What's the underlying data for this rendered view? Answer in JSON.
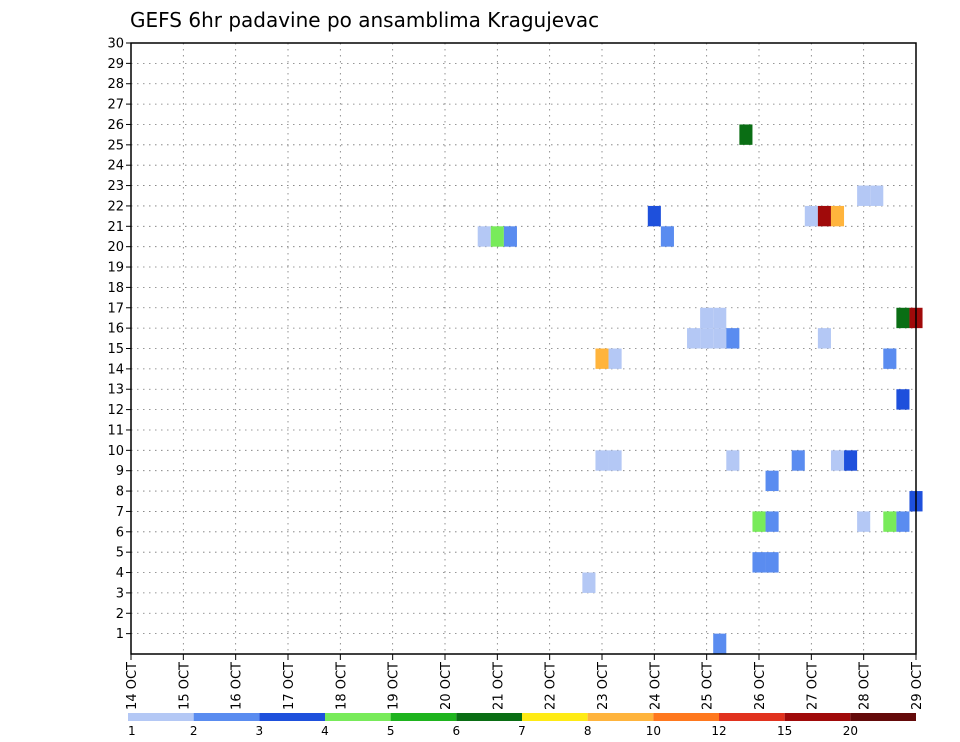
{
  "chart_data": {
    "type": "heatmap",
    "title": "GEFS 6hr padavine po ansamblima Kragujevac",
    "xlabel": "",
    "ylabel": "",
    "x_ticks": [
      "14 OCT",
      "15 OCT",
      "16 OCT",
      "17 OCT",
      "18 OCT",
      "19 OCT",
      "20 OCT",
      "21 OCT",
      "22 OCT",
      "23 OCT",
      "24 OCT",
      "25 OCT",
      "26 OCT",
      "27 OCT",
      "28 OCT",
      "29 OCT"
    ],
    "xlim_days": [
      14,
      29
    ],
    "y_ticks": [
      "1",
      "2",
      "3",
      "4",
      "5",
      "6",
      "7",
      "8",
      "9",
      "10",
      "11",
      "12",
      "13",
      "14",
      "15",
      "16",
      "17",
      "18",
      "19",
      "20",
      "21",
      "22",
      "23",
      "24",
      "25",
      "26",
      "27",
      "28",
      "29",
      "30"
    ],
    "ylim": [
      0,
      30
    ],
    "grid": true,
    "legend_position": "bottom",
    "legend": {
      "labels": [
        "1",
        "2",
        "3",
        "4",
        "5",
        "6",
        "7",
        "8",
        "10",
        "12",
        "15",
        "20"
      ],
      "colors": [
        "#b4c8f5",
        "#5a8cf0",
        "#1e50dc",
        "#78eb5a",
        "#1eb41e",
        "#0a6e14",
        "#ffeb14",
        "#ffb43c",
        "#ff781e",
        "#e1321e",
        "#a00a0a",
        "#640a0a"
      ]
    },
    "cells": [
      {
        "day": 20.75,
        "member": 21,
        "color": "#b4c8f5"
      },
      {
        "day": 21.0,
        "member": 21,
        "color": "#78eb5a"
      },
      {
        "day": 21.25,
        "member": 21,
        "color": "#5a8cf0"
      },
      {
        "day": 24.0,
        "member": 22,
        "color": "#1e50dc"
      },
      {
        "day": 24.25,
        "member": 21,
        "color": "#5a8cf0"
      },
      {
        "day": 25.75,
        "member": 26,
        "color": "#0a6e14"
      },
      {
        "day": 27.0,
        "member": 22,
        "color": "#b4c8f5"
      },
      {
        "day": 27.25,
        "member": 22,
        "color": "#a00a0a"
      },
      {
        "day": 27.5,
        "member": 22,
        "color": "#ffb43c"
      },
      {
        "day": 28.0,
        "member": 23,
        "color": "#b4c8f5"
      },
      {
        "day": 28.25,
        "member": 23,
        "color": "#b4c8f5"
      },
      {
        "day": 25.0,
        "member": 17,
        "color": "#b4c8f5"
      },
      {
        "day": 25.25,
        "member": 17,
        "color": "#b4c8f5"
      },
      {
        "day": 24.75,
        "member": 16,
        "color": "#b4c8f5"
      },
      {
        "day": 25.0,
        "member": 16,
        "color": "#b4c8f5"
      },
      {
        "day": 25.25,
        "member": 16,
        "color": "#b4c8f5"
      },
      {
        "day": 25.5,
        "member": 16,
        "color": "#5a8cf0"
      },
      {
        "day": 27.25,
        "member": 16,
        "color": "#b4c8f5"
      },
      {
        "day": 28.75,
        "member": 17,
        "color": "#0a6e14"
      },
      {
        "day": 29.0,
        "member": 17,
        "color": "#a00a0a"
      },
      {
        "day": 23.0,
        "member": 15,
        "color": "#ffb43c"
      },
      {
        "day": 23.25,
        "member": 15,
        "color": "#b4c8f5"
      },
      {
        "day": 28.5,
        "member": 15,
        "color": "#5a8cf0"
      },
      {
        "day": 28.75,
        "member": 13,
        "color": "#1e50dc"
      },
      {
        "day": 23.0,
        "member": 10,
        "color": "#b4c8f5"
      },
      {
        "day": 23.25,
        "member": 10,
        "color": "#b4c8f5"
      },
      {
        "day": 25.5,
        "member": 10,
        "color": "#b4c8f5"
      },
      {
        "day": 26.75,
        "member": 10,
        "color": "#5a8cf0"
      },
      {
        "day": 27.5,
        "member": 10,
        "color": "#b4c8f5"
      },
      {
        "day": 27.75,
        "member": 10,
        "color": "#1e50dc"
      },
      {
        "day": 26.25,
        "member": 9,
        "color": "#5a8cf0"
      },
      {
        "day": 29.0,
        "member": 8,
        "color": "#1e50dc"
      },
      {
        "day": 26.0,
        "member": 7,
        "color": "#78eb5a"
      },
      {
        "day": 26.25,
        "member": 7,
        "color": "#5a8cf0"
      },
      {
        "day": 28.0,
        "member": 7,
        "color": "#b4c8f5"
      },
      {
        "day": 28.5,
        "member": 7,
        "color": "#78eb5a"
      },
      {
        "day": 28.75,
        "member": 7,
        "color": "#5a8cf0"
      },
      {
        "day": 26.0,
        "member": 5,
        "color": "#5a8cf0"
      },
      {
        "day": 26.25,
        "member": 5,
        "color": "#5a8cf0"
      },
      {
        "day": 22.75,
        "member": 4,
        "color": "#b4c8f5"
      },
      {
        "day": 25.25,
        "member": 1,
        "color": "#5a8cf0"
      }
    ]
  }
}
